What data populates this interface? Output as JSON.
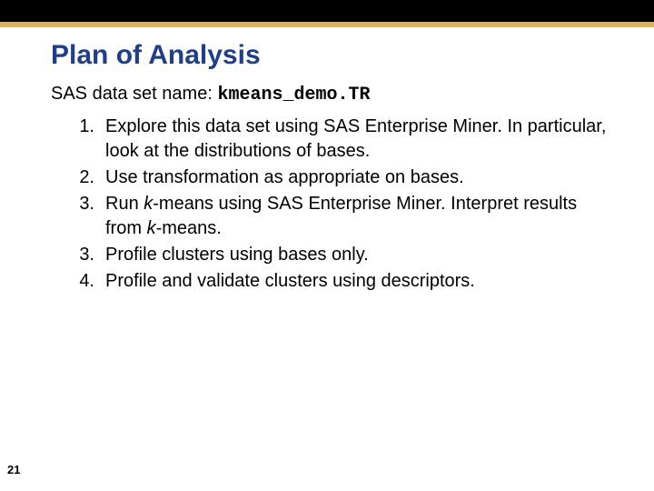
{
  "colors": {
    "top_bar": "#000000",
    "accent_bar": "#d8b25c",
    "title": "#1f3f8a",
    "body_text": "#000000",
    "background": "#ffffff"
  },
  "typography": {
    "title_font": "Arial",
    "title_size_pt": 30,
    "title_weight": "bold",
    "body_font": "Arial",
    "body_size_pt": 20,
    "mono_font": "Courier New"
  },
  "title": "Plan of Analysis",
  "dataset": {
    "label": "SAS data set name: ",
    "name": "kmeans_demo.TR"
  },
  "items": [
    {
      "num": "1.",
      "text": "Explore this data set using SAS Enterprise Miner. In particular, look at the distributions of bases."
    },
    {
      "num": "2.",
      "text": "Use transformation as appropriate on bases."
    },
    {
      "num": "3.",
      "text_pre": "Run ",
      "k1": "k",
      "text_mid": "-means using SAS Enterprise Miner. Interpret results from ",
      "k2": "k",
      "text_post": "-means."
    },
    {
      "num": "3.",
      "text": "Profile clusters using bases only."
    },
    {
      "num": "4.",
      "text": "Profile and validate clusters using descriptors."
    }
  ],
  "slide_number": "21"
}
